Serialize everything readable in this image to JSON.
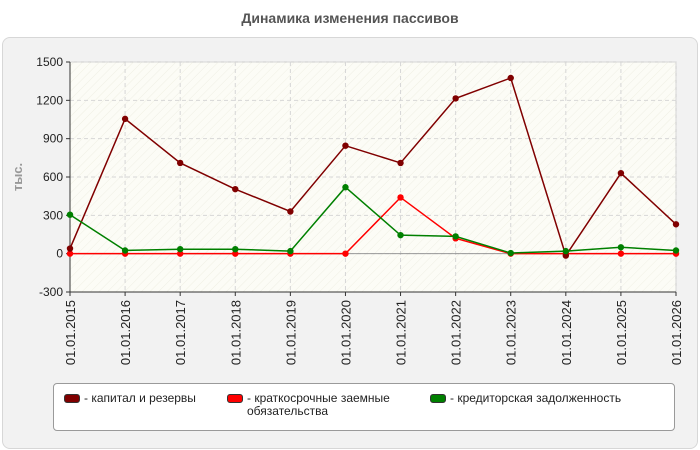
{
  "chart_data": {
    "type": "line",
    "title": "Динамика изменения пассивов",
    "ylabel": "тыс.",
    "xlabel": "",
    "categories": [
      "01.01.2015",
      "01.01.2016",
      "01.01.2017",
      "01.01.2018",
      "01.01.2019",
      "01.01.2020",
      "01.01.2021",
      "01.01.2022",
      "01.01.2023",
      "01.01.2024",
      "01.01.2025",
      "01.01.2026"
    ],
    "ylim": [
      -300,
      1500
    ],
    "yticks": [
      -300,
      0,
      300,
      600,
      900,
      1200,
      1500
    ],
    "grid": true,
    "legend_position": "bottom",
    "series": [
      {
        "name": "- капитал и резервы",
        "color": "#800000",
        "values": [
          40,
          1055,
          710,
          505,
          330,
          845,
          710,
          1215,
          1375,
          -15,
          630,
          230
        ]
      },
      {
        "name": "- краткосрочные заемные обязательства",
        "color": "#ff0000",
        "values": [
          0,
          0,
          0,
          0,
          0,
          0,
          440,
          120,
          0,
          0,
          0,
          0
        ]
      },
      {
        "name": "- кредиторская задолженность",
        "color": "#008000",
        "values": [
          305,
          25,
          35,
          35,
          20,
          520,
          145,
          135,
          5,
          20,
          50,
          25
        ]
      }
    ]
  }
}
